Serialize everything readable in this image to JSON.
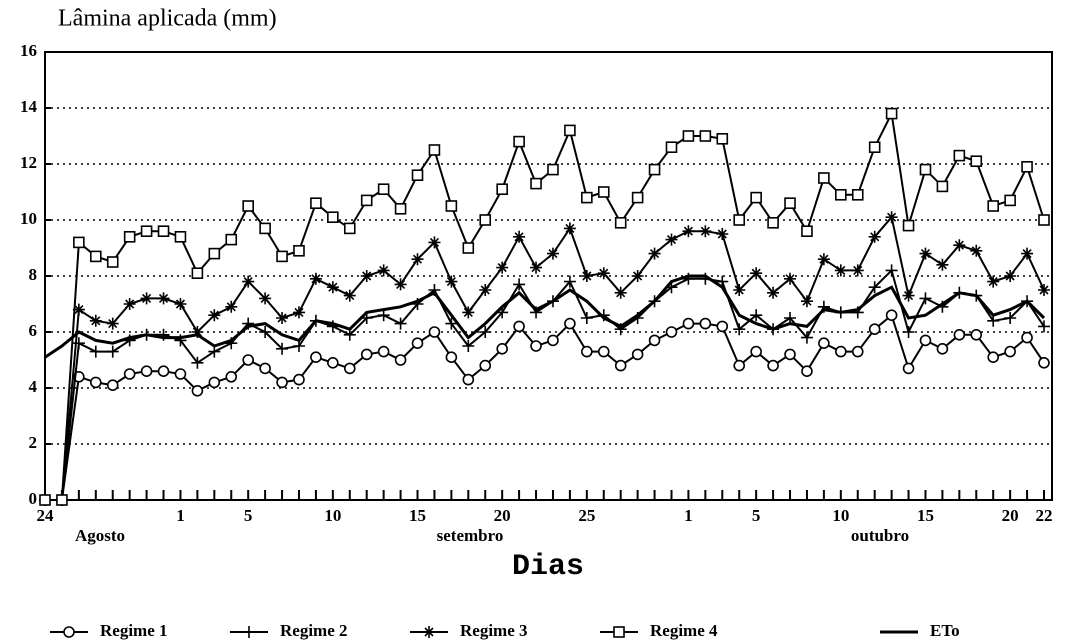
{
  "chart_data": {
    "type": "line",
    "title": "Lâmina aplicada (mm)",
    "x_label": "Dias",
    "annotations": [
      "Agosto",
      "setembro",
      "outubro"
    ],
    "categories": [
      "24",
      null,
      null,
      null,
      null,
      null,
      null,
      null,
      "1",
      null,
      null,
      null,
      "5",
      null,
      null,
      null,
      null,
      "10",
      null,
      null,
      null,
      null,
      "15",
      null,
      null,
      null,
      null,
      "20",
      null,
      null,
      null,
      null,
      "25",
      null,
      null,
      null,
      null,
      null,
      "1",
      null,
      null,
      null,
      "5",
      null,
      null,
      null,
      null,
      "10",
      null,
      null,
      null,
      null,
      "15",
      null,
      null,
      null,
      null,
      "20",
      null,
      "22"
    ],
    "ylim": [
      0,
      16
    ],
    "yticks": [
      0,
      2,
      4,
      6,
      8,
      10,
      12,
      14,
      16
    ],
    "grid": true,
    "series": [
      {
        "name": "Regime 1",
        "color": "#000000",
        "marker": "circle",
        "values": [
          0,
          0,
          4.4,
          4.2,
          4.1,
          4.5,
          4.6,
          4.6,
          4.5,
          3.9,
          4.2,
          4.4,
          5.0,
          4.7,
          4.2,
          4.3,
          5.1,
          4.9,
          4.7,
          5.2,
          5.3,
          5.0,
          5.6,
          6.0,
          5.1,
          4.3,
          4.8,
          5.4,
          6.2,
          5.5,
          5.7,
          6.3,
          5.3,
          5.3,
          4.8,
          5.2,
          5.7,
          6.0,
          6.3,
          6.3,
          6.2,
          4.8,
          5.3,
          4.8,
          5.2,
          4.6,
          5.6,
          5.3,
          5.3,
          6.1,
          6.6,
          4.7,
          5.7,
          5.4,
          5.9,
          5.9,
          5.1,
          5.3,
          5.8,
          4.9
        ]
      },
      {
        "name": "Regime 2",
        "color": "#000000",
        "marker": "plus",
        "values": [
          0,
          0,
          5.6,
          5.3,
          5.3,
          5.7,
          5.9,
          5.9,
          5.7,
          4.9,
          5.3,
          5.6,
          6.3,
          6.0,
          5.4,
          5.5,
          6.4,
          6.2,
          5.9,
          6.5,
          6.6,
          6.3,
          7.0,
          7.5,
          6.3,
          5.5,
          6.0,
          6.7,
          7.7,
          6.7,
          7.1,
          7.8,
          6.5,
          6.6,
          6.1,
          6.5,
          7.1,
          7.6,
          7.9,
          7.9,
          7.8,
          6.1,
          6.6,
          6.1,
          6.5,
          5.8,
          6.9,
          6.7,
          6.7,
          7.6,
          8.2,
          6.0,
          7.2,
          6.9,
          7.4,
          7.3,
          6.4,
          6.5,
          7.1,
          6.2
        ]
      },
      {
        "name": "Regime 3",
        "color": "#000000",
        "marker": "star",
        "values": [
          0,
          0,
          6.8,
          6.4,
          6.3,
          7.0,
          7.2,
          7.2,
          7.0,
          6.0,
          6.6,
          6.9,
          7.8,
          7.2,
          6.5,
          6.7,
          7.9,
          7.6,
          7.3,
          8.0,
          8.2,
          7.7,
          8.6,
          9.2,
          7.8,
          6.7,
          7.5,
          8.3,
          9.4,
          8.3,
          8.8,
          9.7,
          8.0,
          8.1,
          7.4,
          8.0,
          8.8,
          9.3,
          9.6,
          9.6,
          9.5,
          7.5,
          8.1,
          7.4,
          7.9,
          7.1,
          8.6,
          8.2,
          8.2,
          9.4,
          10.1,
          7.3,
          8.8,
          8.4,
          9.1,
          8.9,
          7.8,
          8.0,
          8.8,
          7.5
        ]
      },
      {
        "name": "Regime 4",
        "color": "#000000",
        "marker": "square",
        "values": [
          0,
          0,
          9.2,
          8.7,
          8.5,
          9.4,
          9.6,
          9.6,
          9.4,
          8.1,
          8.8,
          9.3,
          10.5,
          9.7,
          8.7,
          8.9,
          10.6,
          10.1,
          9.7,
          10.7,
          11.1,
          10.4,
          11.6,
          12.5,
          10.5,
          9.0,
          10.0,
          11.1,
          12.8,
          11.3,
          11.8,
          13.2,
          10.8,
          11.0,
          9.9,
          10.8,
          11.8,
          12.6,
          13.0,
          13.0,
          12.9,
          10.0,
          10.8,
          9.9,
          10.6,
          9.6,
          11.5,
          10.9,
          10.9,
          12.6,
          13.8,
          9.8,
          11.8,
          11.2,
          12.3,
          12.1,
          10.5,
          10.7,
          11.9,
          10.0
        ]
      },
      {
        "name": "ETo",
        "color": "#000000",
        "marker": "none",
        "values": [
          5.1,
          5.5,
          6.0,
          5.7,
          5.6,
          5.8,
          5.9,
          5.8,
          5.8,
          5.9,
          5.5,
          5.7,
          6.2,
          6.3,
          5.9,
          5.7,
          6.4,
          6.3,
          6.1,
          6.7,
          6.8,
          6.9,
          7.1,
          7.4,
          6.6,
          5.8,
          6.3,
          6.9,
          7.4,
          6.8,
          7.1,
          7.5,
          7.1,
          6.5,
          6.2,
          6.6,
          7.1,
          7.8,
          8.0,
          8.0,
          7.6,
          6.6,
          6.3,
          6.1,
          6.3,
          6.2,
          6.8,
          6.7,
          6.8,
          7.3,
          7.6,
          6.5,
          6.6,
          7.0,
          7.4,
          7.3,
          6.6,
          6.8,
          7.1,
          6.5
        ]
      }
    ]
  }
}
